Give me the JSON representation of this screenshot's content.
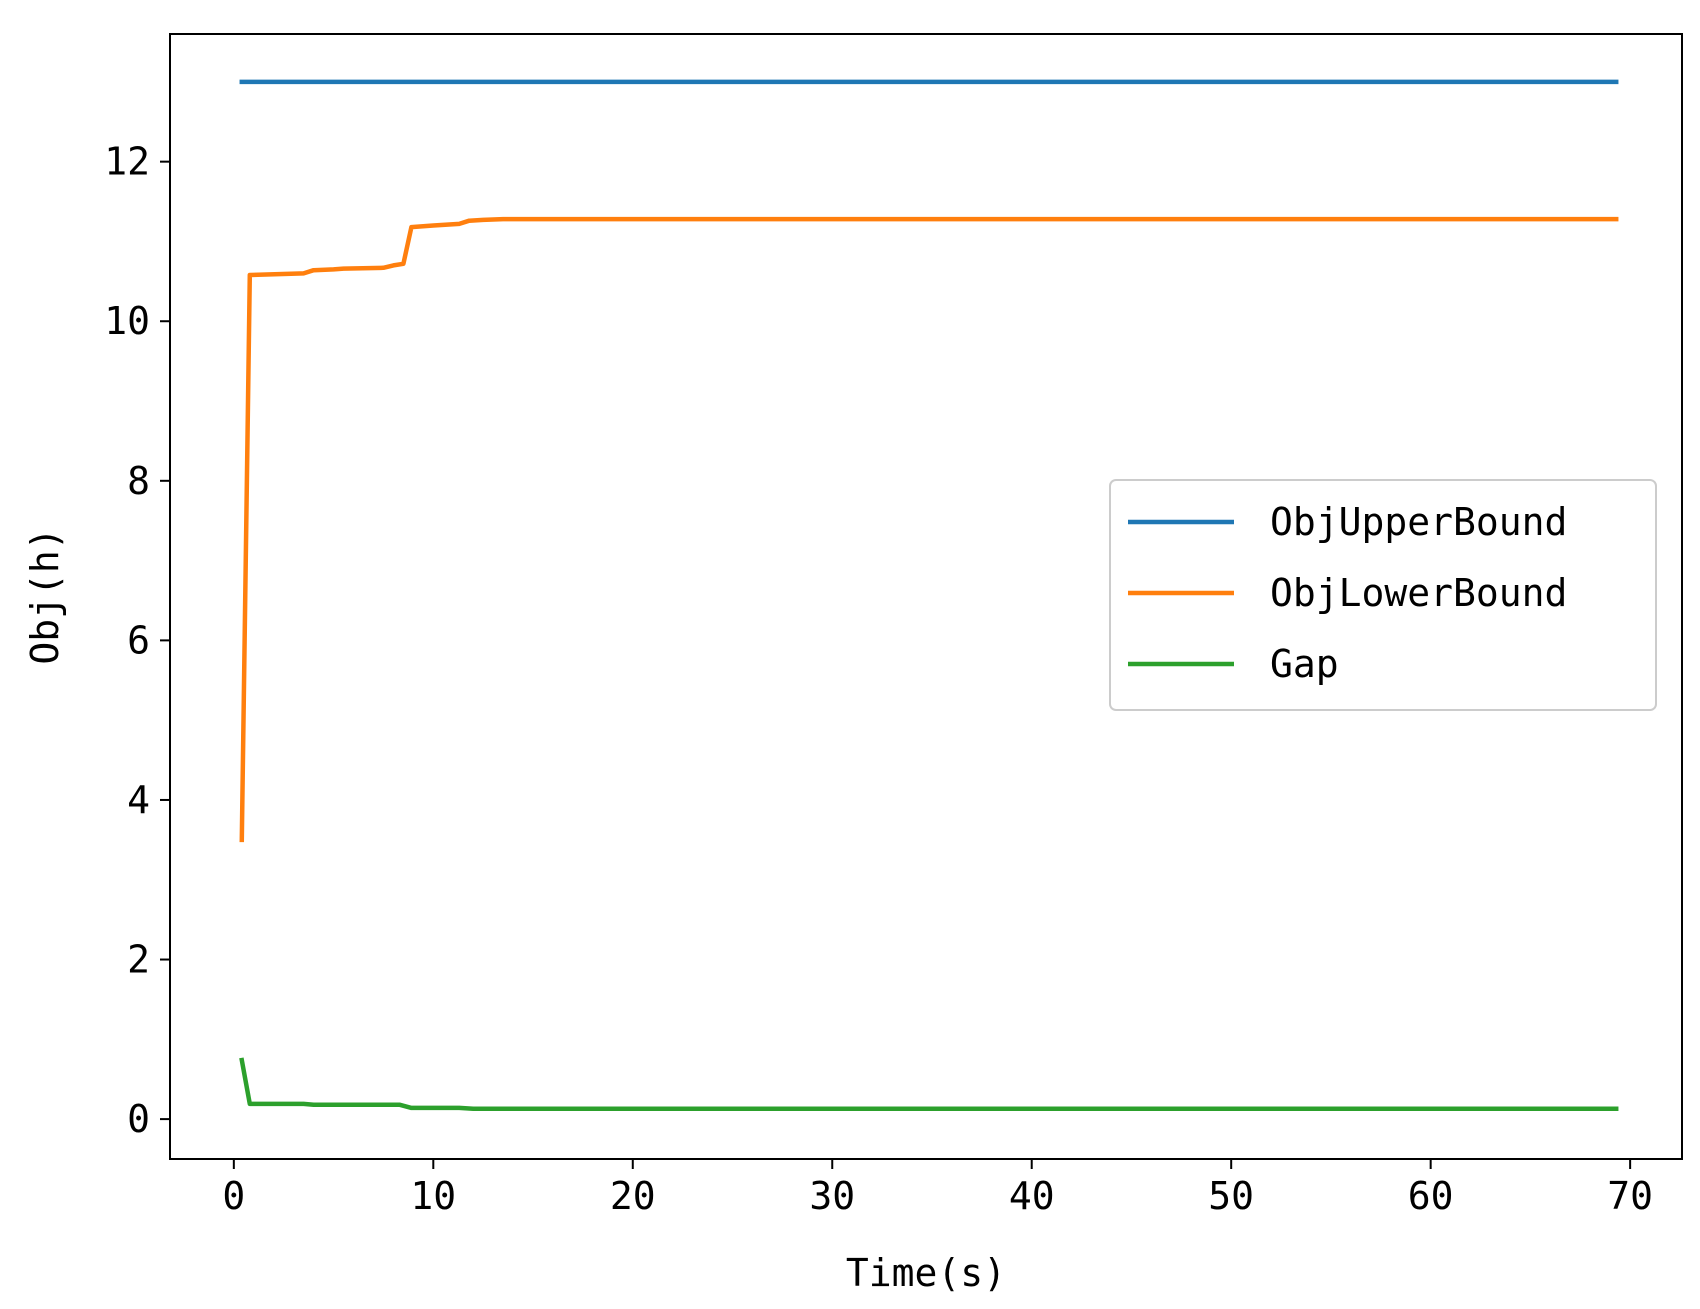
{
  "chart_data": {
    "type": "line",
    "title": "",
    "xlabel": "Time(s)",
    "ylabel": "Obj(h)",
    "xlim": [
      -3.2,
      72.6
    ],
    "ylim": [
      -0.5,
      13.6
    ],
    "xticks": [
      0,
      10,
      20,
      30,
      40,
      50,
      60,
      70
    ],
    "xtick_labels": [
      "0",
      "10",
      "20",
      "30",
      "40",
      "50",
      "60",
      "70"
    ],
    "yticks": [
      0,
      2,
      4,
      6,
      8,
      10,
      12
    ],
    "ytick_labels": [
      "0",
      "2",
      "4",
      "6",
      "8",
      "10",
      "12"
    ],
    "grid": false,
    "legend_position": "center-right",
    "series": [
      {
        "name": "ObjUpperBound",
        "color": "#1f77b4",
        "x": [
          0.4,
          69.3
        ],
        "y": [
          13.0,
          13.0
        ]
      },
      {
        "name": "ObjLowerBound",
        "color": "#ff7f0e",
        "x": [
          0.4,
          0.8,
          3.5,
          4.0,
          5.0,
          5.5,
          7.5,
          8.0,
          8.5,
          8.9,
          10.0,
          11.3,
          11.8,
          12.5,
          13.5,
          69.3
        ],
        "y": [
          3.5,
          10.58,
          10.6,
          10.64,
          10.65,
          10.66,
          10.67,
          10.7,
          10.72,
          11.18,
          11.2,
          11.22,
          11.26,
          11.27,
          11.28,
          11.28
        ]
      },
      {
        "name": "Gap",
        "color": "#2ca02c",
        "x": [
          0.4,
          0.8,
          3.5,
          4.0,
          8.3,
          8.9,
          11.3,
          12.0,
          69.3
        ],
        "y": [
          0.74,
          0.19,
          0.19,
          0.18,
          0.18,
          0.14,
          0.14,
          0.13,
          0.13
        ]
      }
    ]
  }
}
